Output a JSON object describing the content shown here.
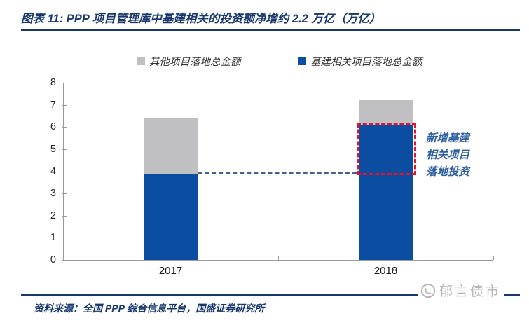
{
  "title": "图表 11:  PPP 项目管理库中基建相关的投资额净增约 2.2 万亿（万亿）",
  "source": "资料来源：全国 PPP 综合信息平台，国盛证券研究所",
  "watermark": "郁言债市",
  "colors": {
    "navy": "#17376e",
    "bar_blue": "#0b4da1",
    "bar_gray": "#c0c0c3",
    "ref_line": "#466189",
    "highlight_red": "#e8112d",
    "annotation_blue": "#2e5fa3",
    "watermark_gray": "#b7b7ba",
    "axis_gray": "#9a9a9a"
  },
  "legend": [
    {
      "label": "其他项目落地总金额",
      "color": "#c0c0c3"
    },
    {
      "label": "基建相关项目落地总金额",
      "color": "#0b4da1"
    }
  ],
  "chart_data": {
    "type": "bar",
    "stacked": true,
    "title": "PPP 项目管理库中基建相关的投资额净增约 2.2 万亿",
    "unit": "万亿",
    "categories": [
      "2017",
      "2018"
    ],
    "series": [
      {
        "name": "基建相关项目落地总金额",
        "color": "#0b4da1",
        "values": [
          3.9,
          6.1
        ]
      },
      {
        "name": "其他项目落地总金额",
        "color": "#c0c0c3",
        "values": [
          2.5,
          1.1
        ]
      }
    ],
    "stack_totals": [
      6.4,
      7.2
    ],
    "ylim": [
      0,
      8
    ],
    "ytick_step": 1,
    "grid": false,
    "legend_position": "top",
    "annotations": {
      "reference_line": {
        "value": 3.9,
        "style": "dashed",
        "color": "#466189"
      },
      "highlight_box": {
        "category": "2018",
        "from": 3.9,
        "to": 6.1,
        "style": "dashed",
        "color": "#e8112d"
      },
      "label": {
        "text": "新增基建\n相关项目\n落地投资",
        "color": "#2e5fa3"
      }
    }
  }
}
